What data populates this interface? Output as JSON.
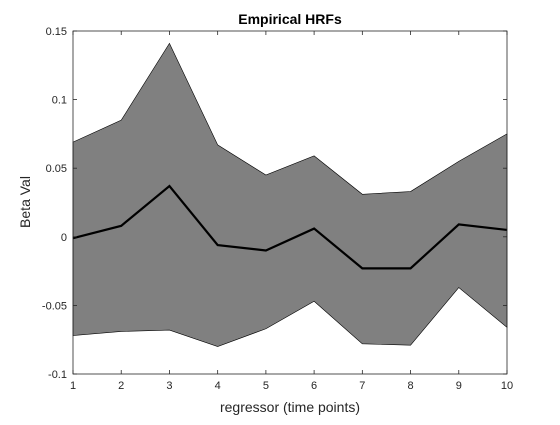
{
  "chart_data": {
    "type": "area",
    "title": "Empirical HRFs",
    "xlabel": "regressor (time points)",
    "ylabel": "Beta Val",
    "xlim": [
      1,
      10
    ],
    "ylim": [
      -0.1,
      0.15
    ],
    "x": [
      1,
      2,
      3,
      4,
      5,
      6,
      7,
      8,
      9,
      10
    ],
    "xticks": [
      "1",
      "2",
      "3",
      "4",
      "5",
      "6",
      "7",
      "8",
      "9",
      "10"
    ],
    "yticks": [
      {
        "value": -0.1,
        "label": "-0.1"
      },
      {
        "value": -0.05,
        "label": "-0.05"
      },
      {
        "value": 0,
        "label": "0"
      },
      {
        "value": 0.05,
        "label": "0.05"
      },
      {
        "value": 0.1,
        "label": "0.1"
      },
      {
        "value": 0.15,
        "label": "0.15"
      }
    ],
    "grid": false,
    "series": [
      {
        "name": "upper bound",
        "values": [
          0.069,
          0.085,
          0.141,
          0.067,
          0.045,
          0.059,
          0.031,
          0.033,
          0.055,
          0.075
        ]
      },
      {
        "name": "lower bound",
        "values": [
          -0.072,
          -0.069,
          -0.068,
          -0.08,
          -0.067,
          -0.047,
          -0.078,
          -0.079,
          -0.037,
          -0.066
        ]
      },
      {
        "name": "mean",
        "values": [
          -0.001,
          0.008,
          0.037,
          -0.006,
          -0.01,
          0.006,
          -0.023,
          -0.023,
          0.009,
          0.005
        ]
      }
    ],
    "colors": {
      "band": "#808080",
      "mean_line": "#000000",
      "axis": "#262626"
    }
  }
}
